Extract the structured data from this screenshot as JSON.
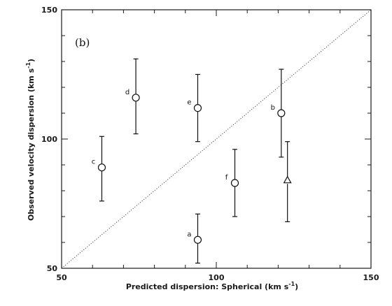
{
  "chart_data": {
    "type": "scatter",
    "panel_label": "(b)",
    "xlabel": "Predicted dispersion: Spherical (km s",
    "xlabel_sup": "-1",
    "xlabel_close": ")",
    "ylabel": "Observed velocity dispersion  (km s",
    "ylabel_sup": "-1",
    "ylabel_close": ")",
    "xlim": [
      50,
      150
    ],
    "ylim": [
      50,
      150
    ],
    "xticks": [
      50,
      100,
      150
    ],
    "yticks": [
      50,
      100,
      150
    ],
    "xtick_labels": [
      "50",
      "100",
      "150"
    ],
    "ytick_labels": [
      "50",
      "100",
      "150"
    ],
    "grid": false,
    "reference_line": {
      "style": "dotted",
      "from": [
        50,
        50
      ],
      "to": [
        150,
        150
      ]
    },
    "points": [
      {
        "label": "a",
        "marker": "circle",
        "x": 94,
        "y": 61,
        "yerr_low": 52,
        "yerr_high": 71
      },
      {
        "label": "b",
        "marker": "circle",
        "x": 121,
        "y": 110,
        "yerr_low": 93,
        "yerr_high": 127
      },
      {
        "label": "c",
        "marker": "circle",
        "x": 63,
        "y": 89,
        "yerr_low": 76,
        "yerr_high": 101
      },
      {
        "label": "d",
        "marker": "circle",
        "x": 74,
        "y": 116,
        "yerr_low": 102,
        "yerr_high": 131
      },
      {
        "label": "e",
        "marker": "circle",
        "x": 94,
        "y": 112,
        "yerr_low": 99,
        "yerr_high": 125
      },
      {
        "label": "f",
        "marker": "circle",
        "x": 106,
        "y": 83,
        "yerr_low": 70,
        "yerr_high": 96
      },
      {
        "label": "",
        "marker": "triangle",
        "x": 123,
        "y": 84,
        "yerr_low": 68,
        "yerr_high": 99
      }
    ]
  }
}
